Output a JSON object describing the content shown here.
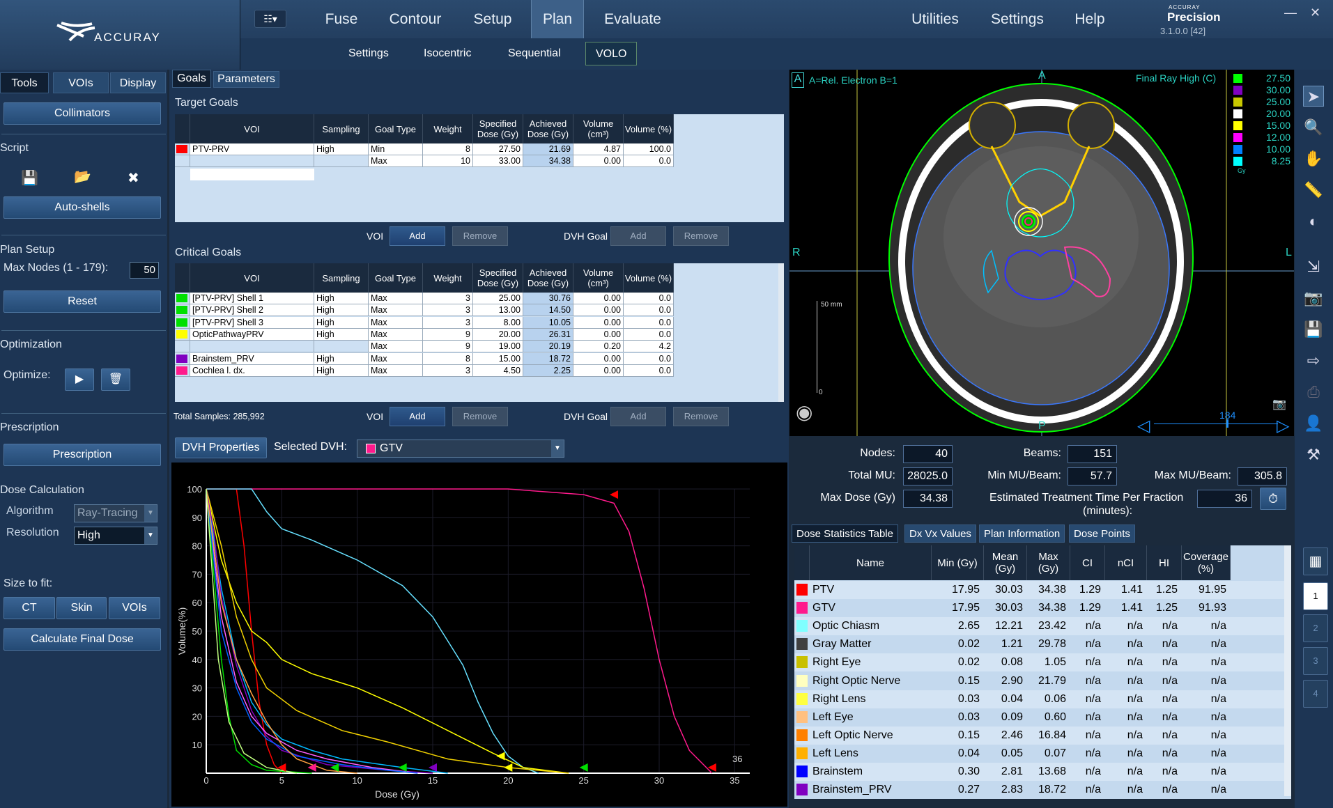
{
  "brand": {
    "logo_text": "ACCURAY",
    "product_small": "ACCURAY",
    "product": "Precision",
    "version": "3.1.0.0 [42]"
  },
  "menu": {
    "grid": "☷▾",
    "items": [
      "Fuse",
      "Contour",
      "Setup",
      "Plan",
      "Evaluate"
    ],
    "right": [
      "Utilities",
      "Settings",
      "Help"
    ]
  },
  "submenu": [
    "Settings",
    "Isocentric",
    "Sequential",
    "VOLO"
  ],
  "left": {
    "tabs": [
      "Tools",
      "VOIs",
      "Display"
    ],
    "collimators": "Collimators",
    "script": "Script",
    "autoshells": "Auto-shells",
    "plan_setup": "Plan Setup",
    "max_nodes_label": "Max Nodes (1 - 179):",
    "max_nodes": "50",
    "reset": "Reset",
    "optimization": "Optimization",
    "optimize": "Optimize:",
    "prescription_h": "Prescription",
    "prescription_btn": "Prescription",
    "dose_calc": "Dose Calculation",
    "algorithm_label": "Algorithm",
    "algorithm": "Ray-Tracing",
    "resolution_label": "Resolution",
    "resolution": "High",
    "size_fit": "Size to fit:",
    "fit_buttons": [
      "CT",
      "Skin",
      "VOIs"
    ],
    "calc_final": "Calculate Final Dose"
  },
  "goals": {
    "tabs": [
      "Goals",
      "Parameters"
    ],
    "target_title": "Target Goals",
    "critical_title": "Critical Goals",
    "headers": [
      "VOI",
      "Sampling",
      "Goal Type",
      "Weight",
      "Specified Dose (Gy)",
      "Achieved Dose (Gy)",
      "Volume (cm³)",
      "Volume (%)"
    ],
    "target_rows": [
      {
        "color": "#ff0000",
        "voi": "PTV-PRV",
        "sampling": "High",
        "type": "Min",
        "weight": "8",
        "spec": "27.50",
        "ach": "21.69",
        "vol": "4.87",
        "pct": "100.0"
      },
      {
        "color": "",
        "voi": "",
        "sampling": "",
        "type": "Max",
        "weight": "10",
        "spec": "33.00",
        "ach": "34.38",
        "vol": "0.00",
        "pct": "0.0"
      }
    ],
    "critical_rows": [
      {
        "color": "#00e000",
        "voi": "[PTV-PRV] Shell 1",
        "sampling": "High",
        "type": "Max",
        "weight": "3",
        "spec": "25.00",
        "ach": "30.76",
        "vol": "0.00",
        "pct": "0.0"
      },
      {
        "color": "#00e000",
        "voi": "[PTV-PRV] Shell 2",
        "sampling": "High",
        "type": "Max",
        "weight": "3",
        "spec": "13.00",
        "ach": "14.50",
        "vol": "0.00",
        "pct": "0.0"
      },
      {
        "color": "#00e000",
        "voi": "[PTV-PRV] Shell 3",
        "sampling": "High",
        "type": "Max",
        "weight": "3",
        "spec": "8.00",
        "ach": "10.05",
        "vol": "0.00",
        "pct": "0.0"
      },
      {
        "color": "#ffff00",
        "voi": "OpticPathwayPRV",
        "sampling": "High",
        "type": "Max",
        "weight": "9",
        "spec": "20.00",
        "ach": "26.31",
        "vol": "0.00",
        "pct": "0.0"
      },
      {
        "color": "",
        "voi": "",
        "sampling": "",
        "type": "Max",
        "weight": "9",
        "spec": "19.00",
        "ach": "20.19",
        "vol": "0.20",
        "pct": "4.2"
      },
      {
        "color": "#8000c0",
        "voi": "Brainstem_PRV",
        "sampling": "High",
        "type": "Max",
        "weight": "8",
        "spec": "15.00",
        "ach": "18.72",
        "vol": "0.00",
        "pct": "0.0"
      },
      {
        "color": "#ff1a8c",
        "voi": "Cochlea l. dx.",
        "sampling": "High",
        "type": "Max",
        "weight": "3",
        "spec": "4.50",
        "ach": "2.25",
        "vol": "0.00",
        "pct": "0.0"
      }
    ],
    "voi_label": "VOI",
    "dvh_goal_label": "DVH Goal",
    "add": "Add",
    "remove": "Remove",
    "total_samples": "Total Samples: 285,992"
  },
  "dvh": {
    "props_btn": "DVH Properties",
    "selected_label": "Selected DVH:",
    "selected": "GTV",
    "selected_color": "#ff1a8c",
    "annotation": "36"
  },
  "chart_data": {
    "type": "line",
    "xlabel": "Dose (Gy)",
    "ylabel": "Volume(%)",
    "xlim": [
      0,
      36
    ],
    "ylim": [
      0,
      100
    ],
    "xticks": [
      0,
      5,
      10,
      15,
      20,
      25,
      30,
      35
    ],
    "yticks": [
      10,
      20,
      30,
      40,
      50,
      60,
      70,
      80,
      90,
      100
    ],
    "series": [
      {
        "color": "#ff1a8c",
        "points": [
          [
            0,
            100
          ],
          [
            20,
            100
          ],
          [
            25,
            98
          ],
          [
            27,
            95
          ],
          [
            28,
            85
          ],
          [
            29,
            65
          ],
          [
            30,
            40
          ],
          [
            31,
            20
          ],
          [
            32,
            8
          ],
          [
            33.5,
            0
          ]
        ]
      },
      {
        "color": "#ff0000",
        "points": [
          [
            0,
            100
          ],
          [
            2,
            100
          ],
          [
            2.5,
            80
          ],
          [
            3,
            50
          ],
          [
            3.5,
            25
          ],
          [
            4,
            10
          ],
          [
            4.5,
            3
          ],
          [
            5,
            0
          ]
        ]
      },
      {
        "color": "#66e0ff",
        "points": [
          [
            0,
            100
          ],
          [
            3,
            100
          ],
          [
            4,
            92
          ],
          [
            5,
            86
          ],
          [
            7,
            82
          ],
          [
            10,
            75
          ],
          [
            13,
            66
          ],
          [
            15,
            55
          ],
          [
            17,
            38
          ],
          [
            18,
            25
          ],
          [
            19,
            14
          ],
          [
            20,
            6
          ],
          [
            21,
            2
          ],
          [
            22,
            0
          ]
        ]
      },
      {
        "color": "#ffff00",
        "points": [
          [
            0,
            100
          ],
          [
            1,
            75
          ],
          [
            2,
            60
          ],
          [
            3,
            50
          ],
          [
            4,
            46
          ],
          [
            5,
            40
          ],
          [
            7,
            35
          ],
          [
            10,
            30
          ],
          [
            13,
            23
          ],
          [
            16,
            15
          ],
          [
            19,
            7
          ],
          [
            21,
            2
          ],
          [
            24,
            0
          ]
        ]
      },
      {
        "color": "#f0d000",
        "points": [
          [
            0,
            100
          ],
          [
            1,
            80
          ],
          [
            2,
            55
          ],
          [
            3,
            40
          ],
          [
            4,
            30
          ],
          [
            6,
            22
          ],
          [
            9,
            15
          ],
          [
            12,
            11
          ],
          [
            16,
            5
          ],
          [
            20,
            2
          ],
          [
            24,
            0
          ]
        ]
      },
      {
        "color": "#00e000",
        "points": [
          [
            0,
            100
          ],
          [
            0.5,
            70
          ],
          [
            1,
            40
          ],
          [
            1.5,
            20
          ],
          [
            2,
            8
          ],
          [
            3,
            3
          ],
          [
            4,
            1
          ],
          [
            7,
            0
          ]
        ]
      },
      {
        "color": "#00b8ff",
        "points": [
          [
            0,
            100
          ],
          [
            1,
            65
          ],
          [
            2,
            40
          ],
          [
            3,
            25
          ],
          [
            4,
            17
          ],
          [
            5,
            12
          ],
          [
            7,
            8
          ],
          [
            9,
            5
          ],
          [
            13,
            2
          ],
          [
            16,
            0
          ]
        ]
      },
      {
        "color": "#8000c0",
        "points": [
          [
            0,
            100
          ],
          [
            0.5,
            85
          ],
          [
            1,
            62
          ],
          [
            2,
            38
          ],
          [
            3,
            22
          ],
          [
            4,
            13
          ],
          [
            5,
            8
          ],
          [
            8,
            3
          ],
          [
            12,
            1
          ],
          [
            15,
            0
          ]
        ]
      },
      {
        "color": "#ff60ff",
        "points": [
          [
            0,
            100
          ],
          [
            1,
            55
          ],
          [
            2,
            32
          ],
          [
            3,
            20
          ],
          [
            4,
            14
          ],
          [
            6,
            8
          ],
          [
            8,
            5
          ],
          [
            11,
            2
          ],
          [
            14,
            0
          ]
        ]
      },
      {
        "color": "#0060ff",
        "points": [
          [
            0,
            100
          ],
          [
            1,
            50
          ],
          [
            2,
            30
          ],
          [
            3,
            18
          ],
          [
            4,
            12
          ],
          [
            6,
            6
          ],
          [
            9,
            3
          ],
          [
            12,
            1
          ],
          [
            14,
            0
          ]
        ]
      },
      {
        "color": "#ffa040",
        "points": [
          [
            0,
            100
          ],
          [
            1,
            60
          ],
          [
            2,
            40
          ],
          [
            3,
            28
          ],
          [
            4,
            18
          ],
          [
            5,
            10
          ],
          [
            6,
            5
          ],
          [
            8,
            1
          ],
          [
            10,
            0
          ]
        ]
      },
      {
        "color": "#c0ff80",
        "points": [
          [
            0,
            100
          ],
          [
            0.8,
            40
          ],
          [
            1.5,
            18
          ],
          [
            2.5,
            7
          ],
          [
            4,
            2
          ],
          [
            6,
            0
          ]
        ]
      }
    ],
    "markers": [
      {
        "x": 27,
        "y": 98,
        "color": "#ff0000"
      },
      {
        "x": 19.5,
        "y": 6,
        "color": "#ffff00"
      },
      {
        "x": 33.5,
        "y": 2,
        "color": "#ff0000"
      },
      {
        "x": 5,
        "y": 2,
        "color": "#ff0000"
      },
      {
        "x": 7,
        "y": 2,
        "color": "#ff1a8c"
      },
      {
        "x": 8.5,
        "y": 2,
        "color": "#00e000"
      },
      {
        "x": 13,
        "y": 2,
        "color": "#00e000"
      },
      {
        "x": 15,
        "y": 2,
        "color": "#8000c0"
      },
      {
        "x": 20,
        "y": 2,
        "color": "#ffff00"
      },
      {
        "x": 25,
        "y": 2,
        "color": "#00e000"
      }
    ]
  },
  "image": {
    "label_a": "A",
    "overlay": "A=Rel. Electron B=1",
    "orient_top": "A",
    "orient_bottom": "P",
    "orient_left": "R",
    "orient_right": "L",
    "dose_title": "Final Ray High (C)",
    "scale_label": "50 mm",
    "scale_zero": "0",
    "slider_val": "184",
    "legend": [
      {
        "value": "27.50",
        "color": "#00ff00"
      },
      {
        "value": "30.00",
        "color": "#8000c0"
      },
      {
        "value": "25.00",
        "color": "#c8c800"
      },
      {
        "value": "20.00",
        "color": "#ffffff"
      },
      {
        "value": "15.00",
        "color": "#ffff00"
      },
      {
        "value": "12.00",
        "color": "#ff00ff"
      },
      {
        "value": "10.00",
        "color": "#0080ff"
      },
      {
        "value": "8.25",
        "color": "#00ffff"
      }
    ],
    "legend_unit": "Gy"
  },
  "stats": {
    "nodes_label": "Nodes:",
    "nodes": "40",
    "beams_label": "Beams:",
    "beams": "151",
    "total_mu_label": "Total MU:",
    "total_mu": "28025.0",
    "min_mu_label": "Min MU/Beam:",
    "min_mu": "57.7",
    "max_mu_label": "Max MU/Beam:",
    "max_mu": "305.8",
    "max_dose_label": "Max Dose (Gy)",
    "max_dose": "34.38",
    "ett_label": "Estimated Treatment Time Per Fraction",
    "ett_label2": "(minutes):",
    "ett": "36"
  },
  "dose_table": {
    "tabs": [
      "Dose Statistics Table",
      "Dx Vx Values",
      "Plan Information",
      "Dose Points"
    ],
    "headers": [
      "Name",
      "Min (Gy)",
      "Mean (Gy)",
      "Max (Gy)",
      "CI",
      "nCI",
      "HI",
      "Coverage (%)"
    ],
    "rows": [
      {
        "color": "#ff0000",
        "name": "PTV",
        "min": "17.95",
        "mean": "30.03",
        "max": "34.38",
        "ci": "1.29",
        "nci": "1.41",
        "hi": "1.25",
        "cov": "91.95"
      },
      {
        "color": "#ff1a8c",
        "name": "GTV",
        "min": "17.95",
        "mean": "30.03",
        "max": "34.38",
        "ci": "1.29",
        "nci": "1.41",
        "hi": "1.25",
        "cov": "91.93"
      },
      {
        "color": "#80ffff",
        "name": "Optic Chiasm",
        "min": "2.65",
        "mean": "12.21",
        "max": "23.42",
        "ci": "n/a",
        "nci": "n/a",
        "hi": "n/a",
        "cov": "n/a"
      },
      {
        "color": "#404040",
        "name": "Gray Matter",
        "min": "0.02",
        "mean": "1.21",
        "max": "29.78",
        "ci": "n/a",
        "nci": "n/a",
        "hi": "n/a",
        "cov": "n/a"
      },
      {
        "color": "#c8c000",
        "name": "Right Eye",
        "min": "0.02",
        "mean": "0.08",
        "max": "1.05",
        "ci": "n/a",
        "nci": "n/a",
        "hi": "n/a",
        "cov": "n/a"
      },
      {
        "color": "#ffffc0",
        "name": "Right Optic Nerve",
        "min": "0.15",
        "mean": "2.90",
        "max": "21.79",
        "ci": "n/a",
        "nci": "n/a",
        "hi": "n/a",
        "cov": "n/a"
      },
      {
        "color": "#ffff40",
        "name": "Right Lens",
        "min": "0.03",
        "mean": "0.04",
        "max": "0.06",
        "ci": "n/a",
        "nci": "n/a",
        "hi": "n/a",
        "cov": "n/a"
      },
      {
        "color": "#ffc080",
        "name": "Left Eye",
        "min": "0.03",
        "mean": "0.09",
        "max": "0.60",
        "ci": "n/a",
        "nci": "n/a",
        "hi": "n/a",
        "cov": "n/a"
      },
      {
        "color": "#ff8000",
        "name": "Left Optic Nerve",
        "min": "0.15",
        "mean": "2.46",
        "max": "16.84",
        "ci": "n/a",
        "nci": "n/a",
        "hi": "n/a",
        "cov": "n/a"
      },
      {
        "color": "#ffb000",
        "name": "Left Lens",
        "min": "0.04",
        "mean": "0.05",
        "max": "0.07",
        "ci": "n/a",
        "nci": "n/a",
        "hi": "n/a",
        "cov": "n/a"
      },
      {
        "color": "#0000ff",
        "name": "Brainstem",
        "min": "0.30",
        "mean": "2.81",
        "max": "13.68",
        "ci": "n/a",
        "nci": "n/a",
        "hi": "n/a",
        "cov": "n/a"
      },
      {
        "color": "#8000c0",
        "name": "Brainstem_PRV",
        "min": "0.27",
        "mean": "2.83",
        "max": "18.72",
        "ci": "n/a",
        "nci": "n/a",
        "hi": "n/a",
        "cov": "n/a"
      }
    ]
  },
  "vertical_tabs": [
    "1",
    "2",
    "3",
    "4"
  ]
}
